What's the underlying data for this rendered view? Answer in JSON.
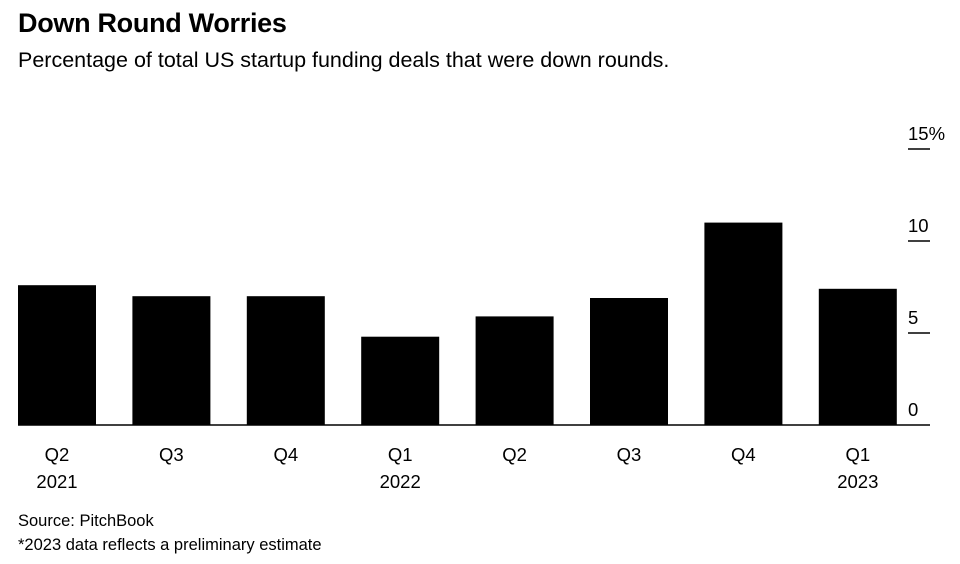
{
  "chart_data": {
    "type": "bar",
    "title": "Down Round Worries",
    "subtitle": "Percentage of total US startup funding deals that were down rounds.",
    "categories": [
      "Q2 2021",
      "Q3 2021",
      "Q4 2021",
      "Q1 2022",
      "Q2 2022",
      "Q3 2022",
      "Q4 2022",
      "Q1 2023"
    ],
    "x_tick_labels": [
      {
        "quarter": "Q2",
        "year": "2021"
      },
      {
        "quarter": "Q3",
        "year": ""
      },
      {
        "quarter": "Q4",
        "year": ""
      },
      {
        "quarter": "Q1",
        "year": "2022"
      },
      {
        "quarter": "Q2",
        "year": ""
      },
      {
        "quarter": "Q3",
        "year": ""
      },
      {
        "quarter": "Q4",
        "year": ""
      },
      {
        "quarter": "Q1",
        "year": "2023"
      }
    ],
    "values": [
      7.6,
      7.0,
      7.0,
      4.8,
      5.9,
      6.9,
      11.0,
      7.4
    ],
    "ylim": [
      0,
      15
    ],
    "y_ticks": [
      0,
      5,
      10,
      15
    ],
    "y_tick_labels": [
      "0",
      "5",
      "10",
      "15%"
    ],
    "xlabel": "",
    "ylabel": "",
    "bar_color": "#000000",
    "axis_position": "right",
    "source": "Source: PitchBook",
    "note": "*2023 data reflects a preliminary estimate"
  }
}
